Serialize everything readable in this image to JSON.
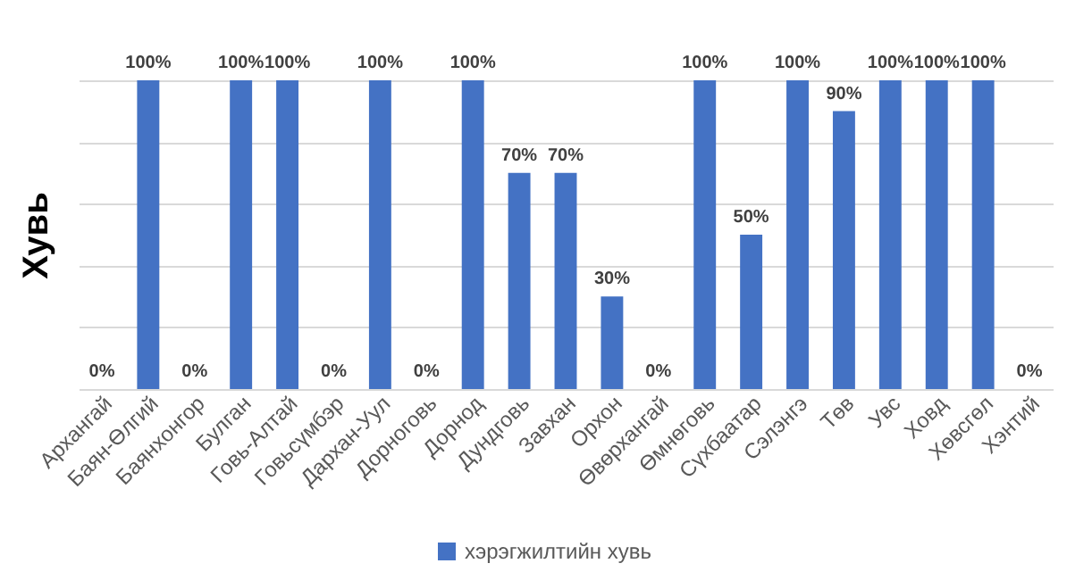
{
  "chart_data": {
    "type": "bar",
    "categories": [
      "Архангай",
      "Баян-Өлгий",
      "Баянхонгор",
      "Булган",
      "Говь-Алтай",
      "Говьсүмбэр",
      "Дархан-Уул",
      "Дорноговь",
      "Дорнод",
      "Дундговь",
      "Завхан",
      "Орхон",
      "Өвөрхангай",
      "Өмнөговь",
      "Сүхбаатар",
      "Сэлэнгэ",
      "Төв",
      "Увс",
      "Ховд",
      "Хөвсгөл",
      "Хэнтий"
    ],
    "series": [
      {
        "name": "хэрэгжилтийн  хувь",
        "color": "#4472c4",
        "values": [
          0,
          100,
          0,
          100,
          100,
          0,
          100,
          0,
          100,
          70,
          70,
          30,
          0,
          100,
          50,
          100,
          90,
          100,
          100,
          100,
          0
        ],
        "value_labels": [
          "0%",
          "100%",
          "0%",
          "100%",
          "100%",
          "0%",
          "100%",
          "0%",
          "100%",
          "70%",
          "70%",
          "30%",
          "0%",
          "100%",
          "50%",
          "100%",
          "90%",
          "100%",
          "100%",
          "100%",
          "0%"
        ]
      }
    ],
    "ylabel": "Хувь",
    "ylim": [
      0,
      100
    ],
    "yticks": [
      {
        "value": 0,
        "label": null
      },
      {
        "value": 20,
        "label": null
      },
      {
        "value": 40,
        "label": null
      },
      {
        "value": 60,
        "label": null
      },
      {
        "value": 80,
        "label": null
      },
      {
        "value": 100,
        "label": null
      }
    ],
    "tick_labels": "x",
    "grid": "y",
    "legend": "bottom"
  }
}
